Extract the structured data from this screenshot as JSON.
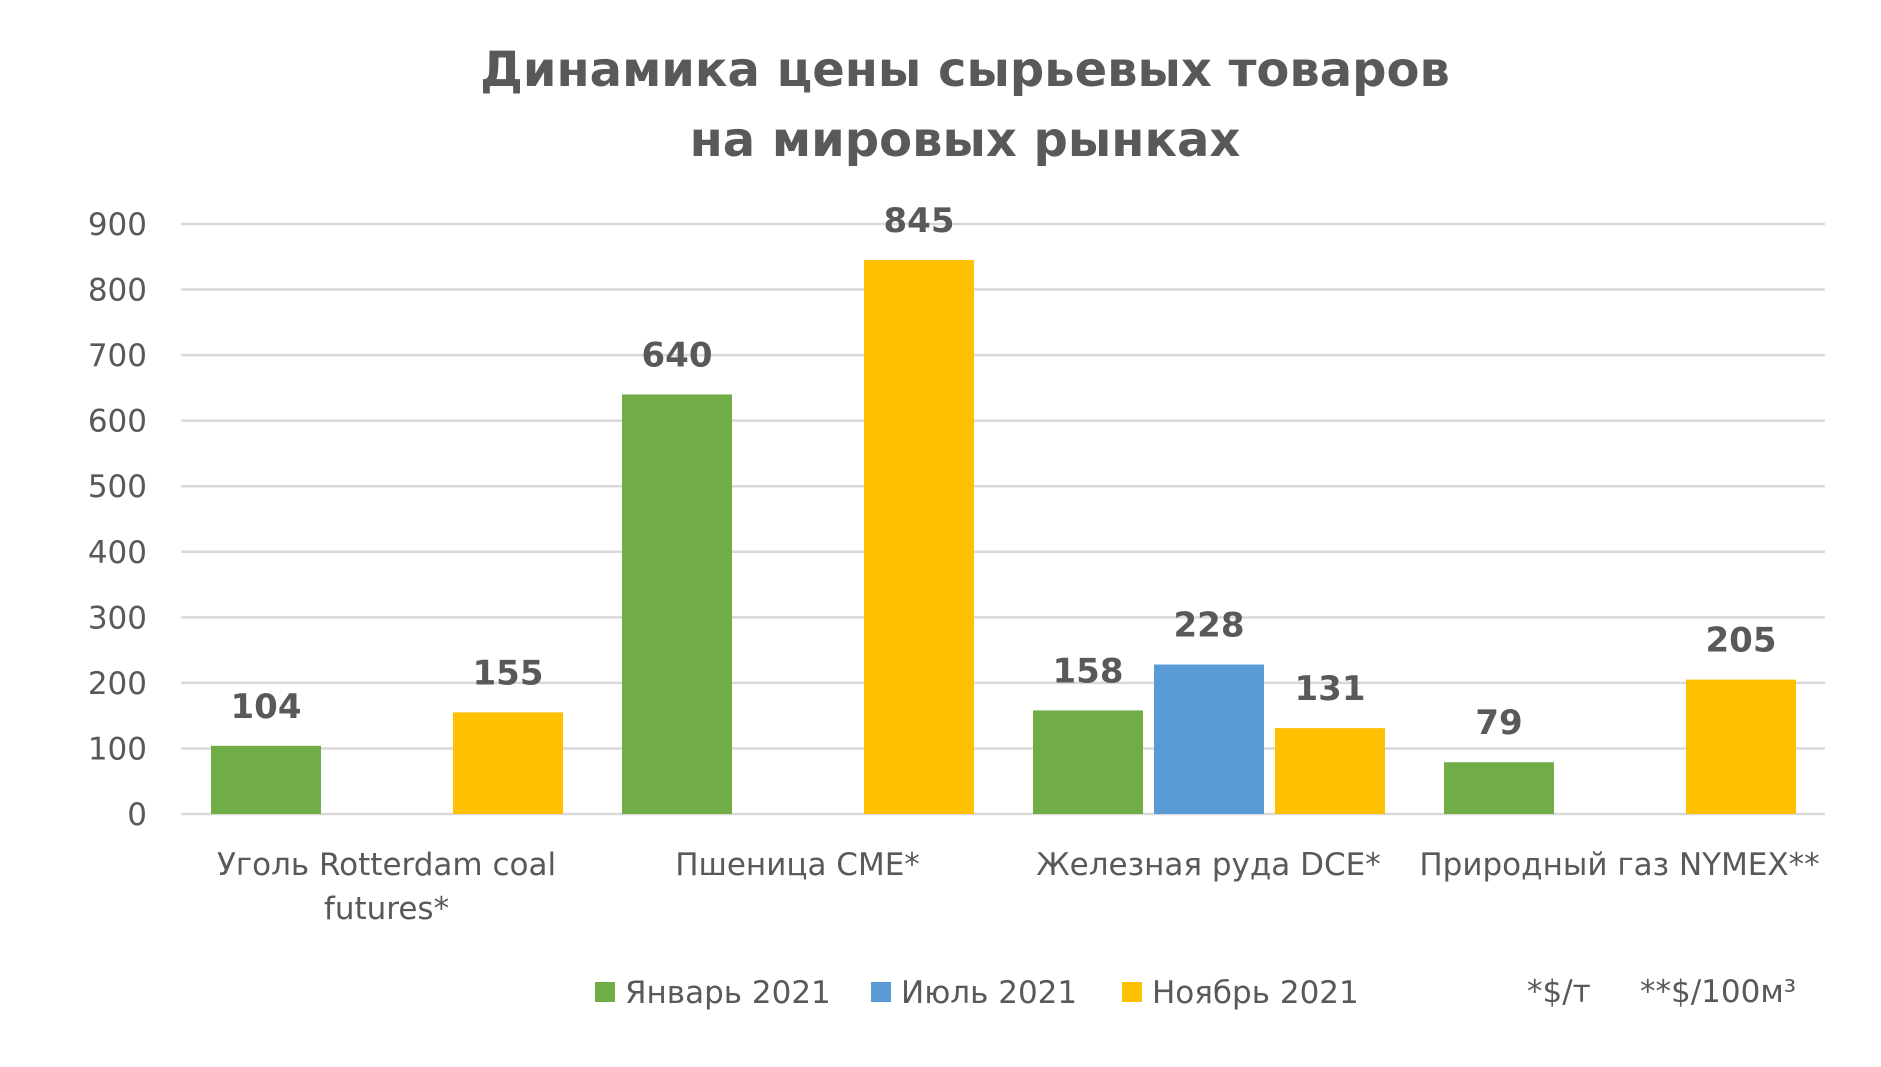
{
  "chart_data": {
    "type": "bar",
    "title": [
      "Динамика цены сырьевых товаров",
      "на мировых рынках"
    ],
    "categories": [
      [
        "Уголь Rotterdam coal",
        "futures*"
      ],
      [
        "Пшеница CME*"
      ],
      [
        "Железная руда DCE*"
      ],
      [
        "Природный газ NYMEX**"
      ]
    ],
    "series": [
      {
        "name": "Январь 2021",
        "color": "#70AD47",
        "values": [
          104,
          640,
          158,
          79
        ]
      },
      {
        "name": "Июль 2021",
        "color": "#5B9BD5",
        "values": [
          null,
          null,
          228,
          null
        ]
      },
      {
        "name": "Ноябрь 2021",
        "color": "#FFC000",
        "values": [
          155,
          845,
          131,
          205
        ]
      }
    ],
    "ylim": [
      0,
      900
    ],
    "yticks": [
      0,
      100,
      200,
      300,
      400,
      500,
      600,
      700,
      800,
      900
    ],
    "grid": true,
    "legend": "bottom",
    "xlabel": "",
    "ylabel": "",
    "notes": [
      "*$/т",
      "**$/100м³"
    ]
  }
}
